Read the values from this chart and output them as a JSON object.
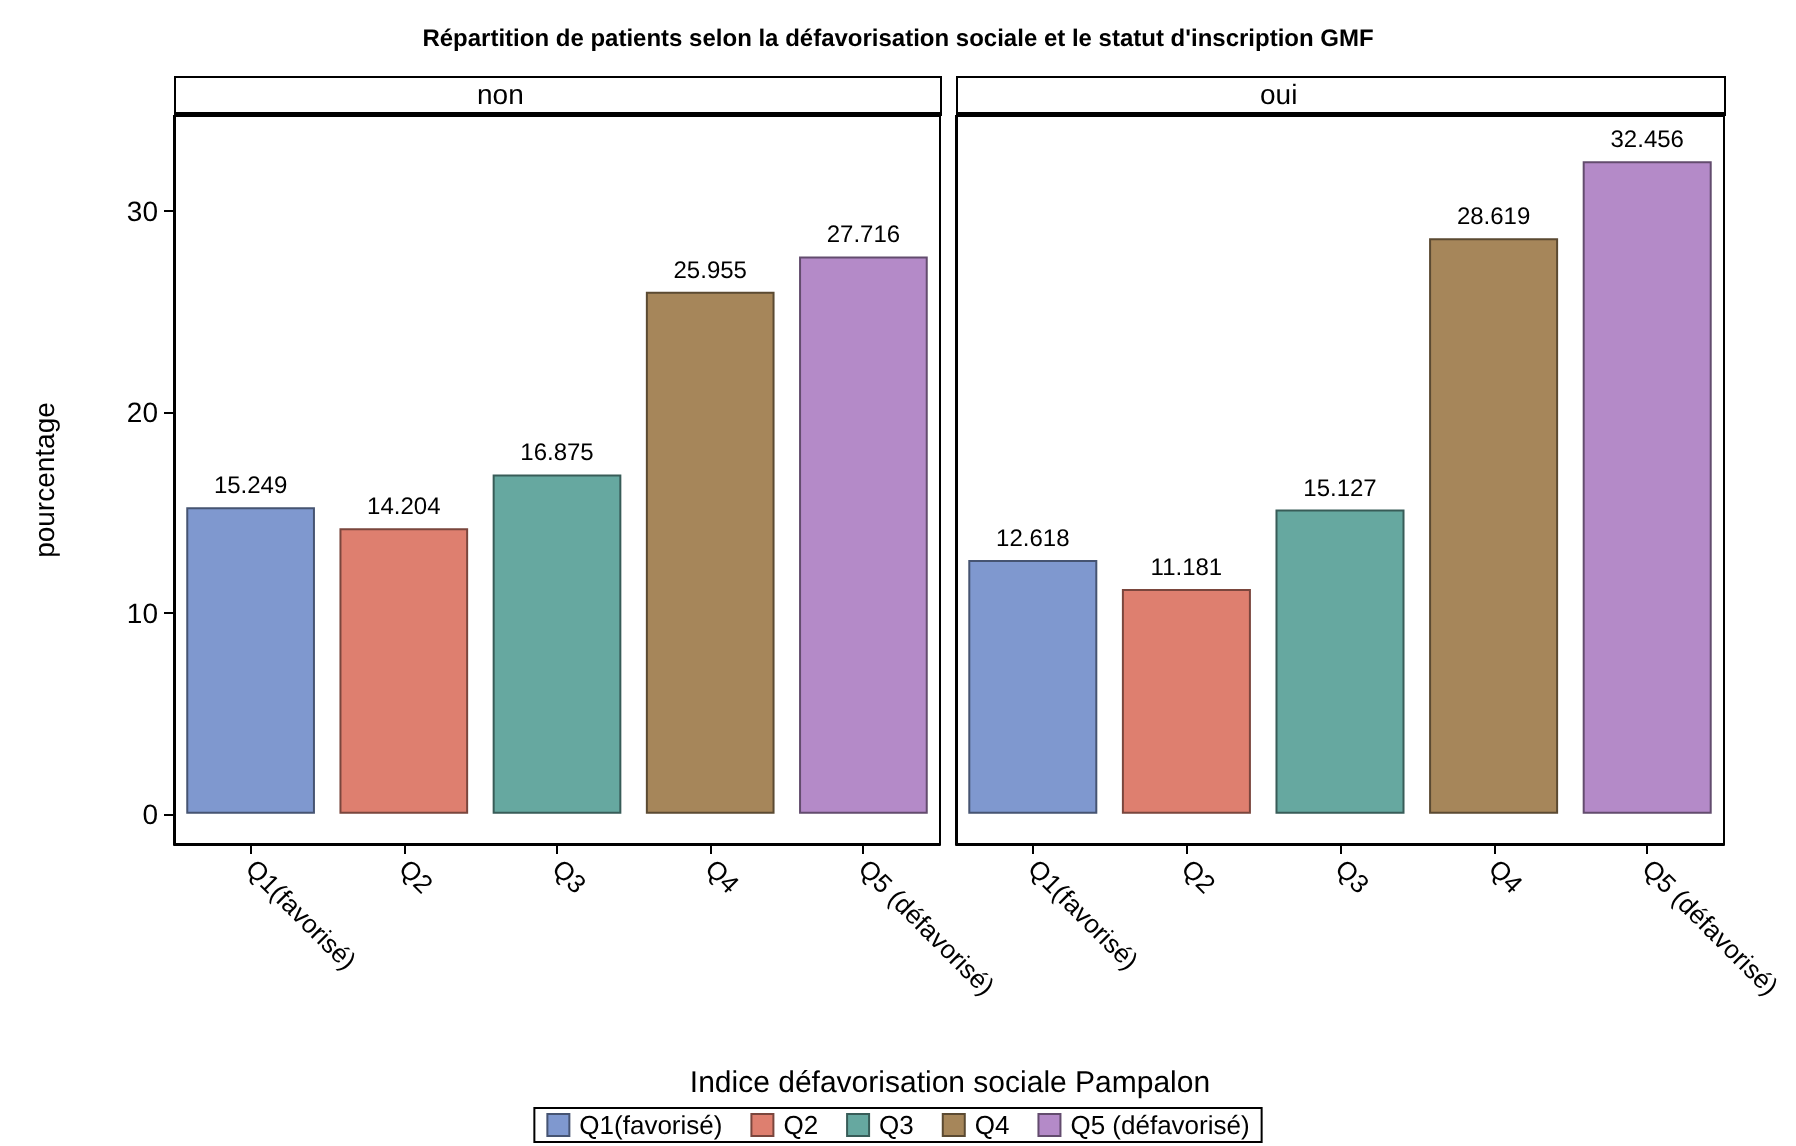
{
  "chart_data": [
    {
      "type": "bar",
      "title": "Répartition de patients selon la défavorisation sociale et le statut d'inscription GMF",
      "subtitle": "non",
      "xlabel": "Indice défavorisation sociale Pampalon",
      "ylabel": "pourcentage",
      "categories": [
        "Q1(favorisé)",
        "Q2",
        "Q3",
        "Q4",
        "Q5 (défavorisé)"
      ],
      "series": [
        {
          "name": "Q1(favorisé)",
          "color": "#7f98cf",
          "values": [
            15.249,
            null,
            null,
            null,
            null
          ]
        },
        {
          "name": "Q2",
          "color": "#de7f6f",
          "values": [
            null,
            14.204,
            null,
            null,
            null
          ]
        },
        {
          "name": "Q3",
          "color": "#66a8a0",
          "values": [
            null,
            null,
            16.875,
            null,
            null
          ]
        },
        {
          "name": "Q4",
          "color": "#a6865a",
          "values": [
            null,
            null,
            null,
            25.955,
            null
          ]
        },
        {
          "name": "Q5 (défavorisé)",
          "color": "#b48ac8",
          "values": [
            null,
            null,
            null,
            null,
            27.716
          ]
        }
      ],
      "ylim": [
        -1.5,
        34.7
      ],
      "yticks": [
        0,
        10,
        20,
        30
      ],
      "data_labels": true,
      "legend": "bottom"
    },
    {
      "type": "bar",
      "subtitle": "oui",
      "categories": [
        "Q1(favorisé)",
        "Q2",
        "Q3",
        "Q4",
        "Q5 (défavorisé)"
      ],
      "series": [
        {
          "color": "#7f98cf",
          "values": [
            12.618,
            null,
            null,
            null,
            null
          ]
        },
        {
          "color": "#de7f6f",
          "values": [
            null,
            11.181,
            null,
            null,
            null
          ]
        },
        {
          "color": "#66a8a0",
          "values": [
            null,
            null,
            15.127,
            null,
            null
          ]
        },
        {
          "color": "#a6865a",
          "values": [
            null,
            null,
            null,
            28.619,
            null
          ]
        },
        {
          "color": "#b48ac8",
          "values": [
            null,
            null,
            null,
            null,
            32.456
          ]
        }
      ],
      "ylim": [
        -1.5,
        34.7
      ],
      "yticks": [
        0,
        10,
        20,
        30
      ],
      "data_labels": true,
      "tick_labels": "x"
    }
  ]
}
